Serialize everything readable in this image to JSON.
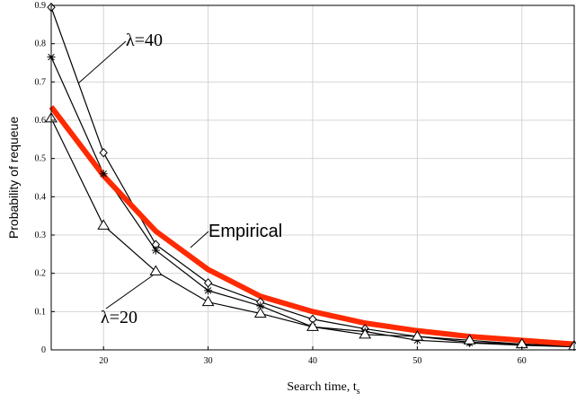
{
  "chart_data": {
    "type": "line",
    "title": "",
    "xlabel": "Search time, t",
    "xlabel_sub": "s",
    "ylabel": "Probability of requeue",
    "xlim": [
      15,
      65
    ],
    "ylim": [
      0,
      0.9
    ],
    "grid": true,
    "xticks": [
      20,
      30,
      40,
      50,
      60
    ],
    "yticks": [
      0,
      0.1,
      0.2,
      0.3,
      0.4,
      0.5,
      0.6,
      0.7,
      0.8,
      0.9
    ],
    "x": [
      15,
      20,
      25,
      30,
      35,
      40,
      45,
      50,
      55,
      60,
      65
    ],
    "series": [
      {
        "marker": "diamond",
        "color": "#000000",
        "values": [
          0.895,
          0.515,
          0.275,
          0.175,
          0.125,
          0.08,
          0.055,
          0.035,
          0.02,
          0.015,
          0.01
        ]
      },
      {
        "marker": "star",
        "color": "#000000",
        "values": [
          0.765,
          0.46,
          0.26,
          0.155,
          0.115,
          0.06,
          0.048,
          0.025,
          0.018,
          0.012,
          0.008
        ]
      },
      {
        "marker": "triangle",
        "color": "#000000",
        "values": [
          0.605,
          0.325,
          0.205,
          0.125,
          0.095,
          0.06,
          0.04,
          0.035,
          0.025,
          0.015,
          0.01
        ]
      },
      {
        "name": "Empirical",
        "marker": "none",
        "color": "#ff2a00",
        "values": [
          0.635,
          0.455,
          0.31,
          0.21,
          0.14,
          0.1,
          0.07,
          0.05,
          0.035,
          0.025,
          0.015
        ]
      }
    ],
    "annotations": [
      {
        "text": "λ=40"
      },
      {
        "text": "λ=20"
      },
      {
        "text": "Empirical"
      }
    ]
  }
}
